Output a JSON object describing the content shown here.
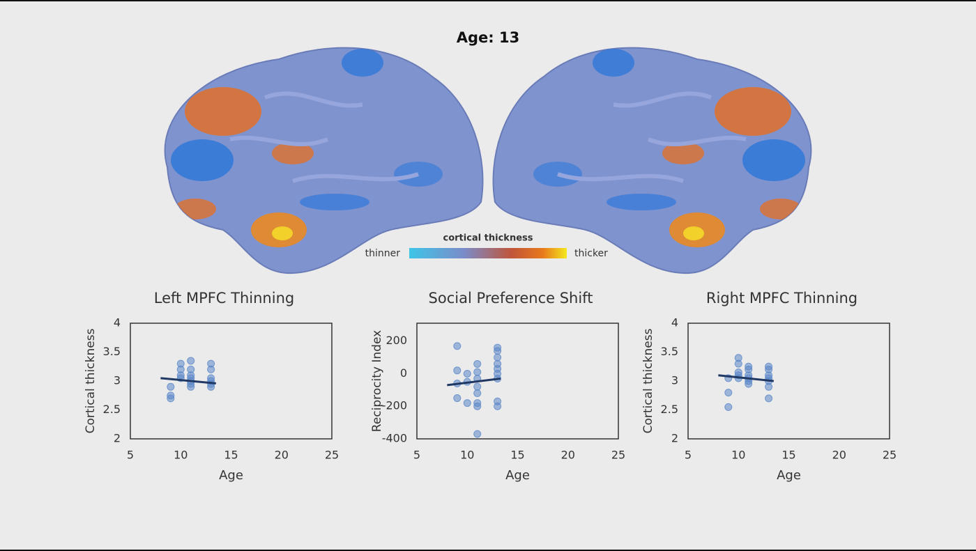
{
  "title": "Age: 13",
  "legend": {
    "title": "cortical thickness",
    "low": "thinner",
    "high": "thicker"
  },
  "chart_data": [
    {
      "type": "scatter",
      "title": "Left MPFC Thinning",
      "x_label": "Age",
      "y_label": "Cortical thickness",
      "xlim": [
        5,
        25
      ],
      "xticks": [
        5,
        10,
        15,
        20,
        25
      ],
      "ylim": [
        2,
        4
      ],
      "yticks": [
        2,
        2.5,
        3,
        3.5,
        4
      ],
      "color": "#5b87c9",
      "x": [
        9,
        9,
        9,
        10,
        10,
        10,
        10,
        11,
        11,
        11,
        11,
        11,
        11,
        11,
        13,
        13,
        13,
        13,
        13,
        13
      ],
      "values": [
        2.9,
        2.75,
        2.7,
        3.3,
        3.2,
        3.1,
        3.05,
        3.35,
        3.2,
        3.1,
        3.05,
        3.0,
        2.95,
        2.9,
        3.3,
        3.2,
        3.05,
        3.0,
        2.95,
        2.9
      ],
      "trend": {
        "color": "#1f3864",
        "x": [
          8,
          13.5
        ],
        "y": [
          3.05,
          2.96
        ]
      }
    },
    {
      "type": "scatter",
      "title": "Social Preference Shift",
      "x_label": "Age",
      "y_label": "Reciprocity Index",
      "xlim": [
        5,
        25
      ],
      "xticks": [
        5,
        10,
        15,
        20,
        25
      ],
      "ylim": [
        -400,
        310
      ],
      "yticks": [
        -400,
        -200,
        0,
        200
      ],
      "color": "#5b87c9",
      "x": [
        9,
        9,
        9,
        9,
        10,
        10,
        10,
        11,
        11,
        11,
        11,
        11,
        11,
        11,
        11,
        13,
        13,
        13,
        13,
        13,
        13,
        13,
        13,
        13
      ],
      "values": [
        170,
        20,
        -60,
        -150,
        0,
        -50,
        -180,
        60,
        10,
        -30,
        -80,
        -120,
        -180,
        -200,
        -370,
        160,
        140,
        100,
        60,
        30,
        0,
        -30,
        -170,
        -200
      ],
      "trend": {
        "color": "#1f3864",
        "x": [
          8,
          13.3
        ],
        "y": [
          -70,
          -30
        ]
      }
    },
    {
      "type": "scatter",
      "title": "Right MPFC Thinning",
      "x_label": "Age",
      "y_label": "Cortical thickness",
      "xlim": [
        5,
        25
      ],
      "xticks": [
        5,
        10,
        15,
        20,
        25
      ],
      "ylim": [
        2,
        4
      ],
      "yticks": [
        2,
        2.5,
        3,
        3.5,
        4
      ],
      "color": "#5b87c9",
      "x": [
        9,
        9,
        9,
        10,
        10,
        10,
        10,
        10,
        11,
        11,
        11,
        11,
        11,
        11,
        13,
        13,
        13,
        13,
        13,
        13,
        13
      ],
      "values": [
        3.05,
        2.8,
        2.55,
        3.4,
        3.3,
        3.15,
        3.1,
        3.05,
        3.25,
        3.2,
        3.1,
        3.05,
        3.0,
        2.95,
        3.25,
        3.2,
        3.1,
        3.05,
        3.0,
        2.9,
        2.7
      ],
      "trend": {
        "color": "#1f3864",
        "x": [
          8,
          13.5
        ],
        "y": [
          3.1,
          3.0
        ]
      }
    }
  ]
}
